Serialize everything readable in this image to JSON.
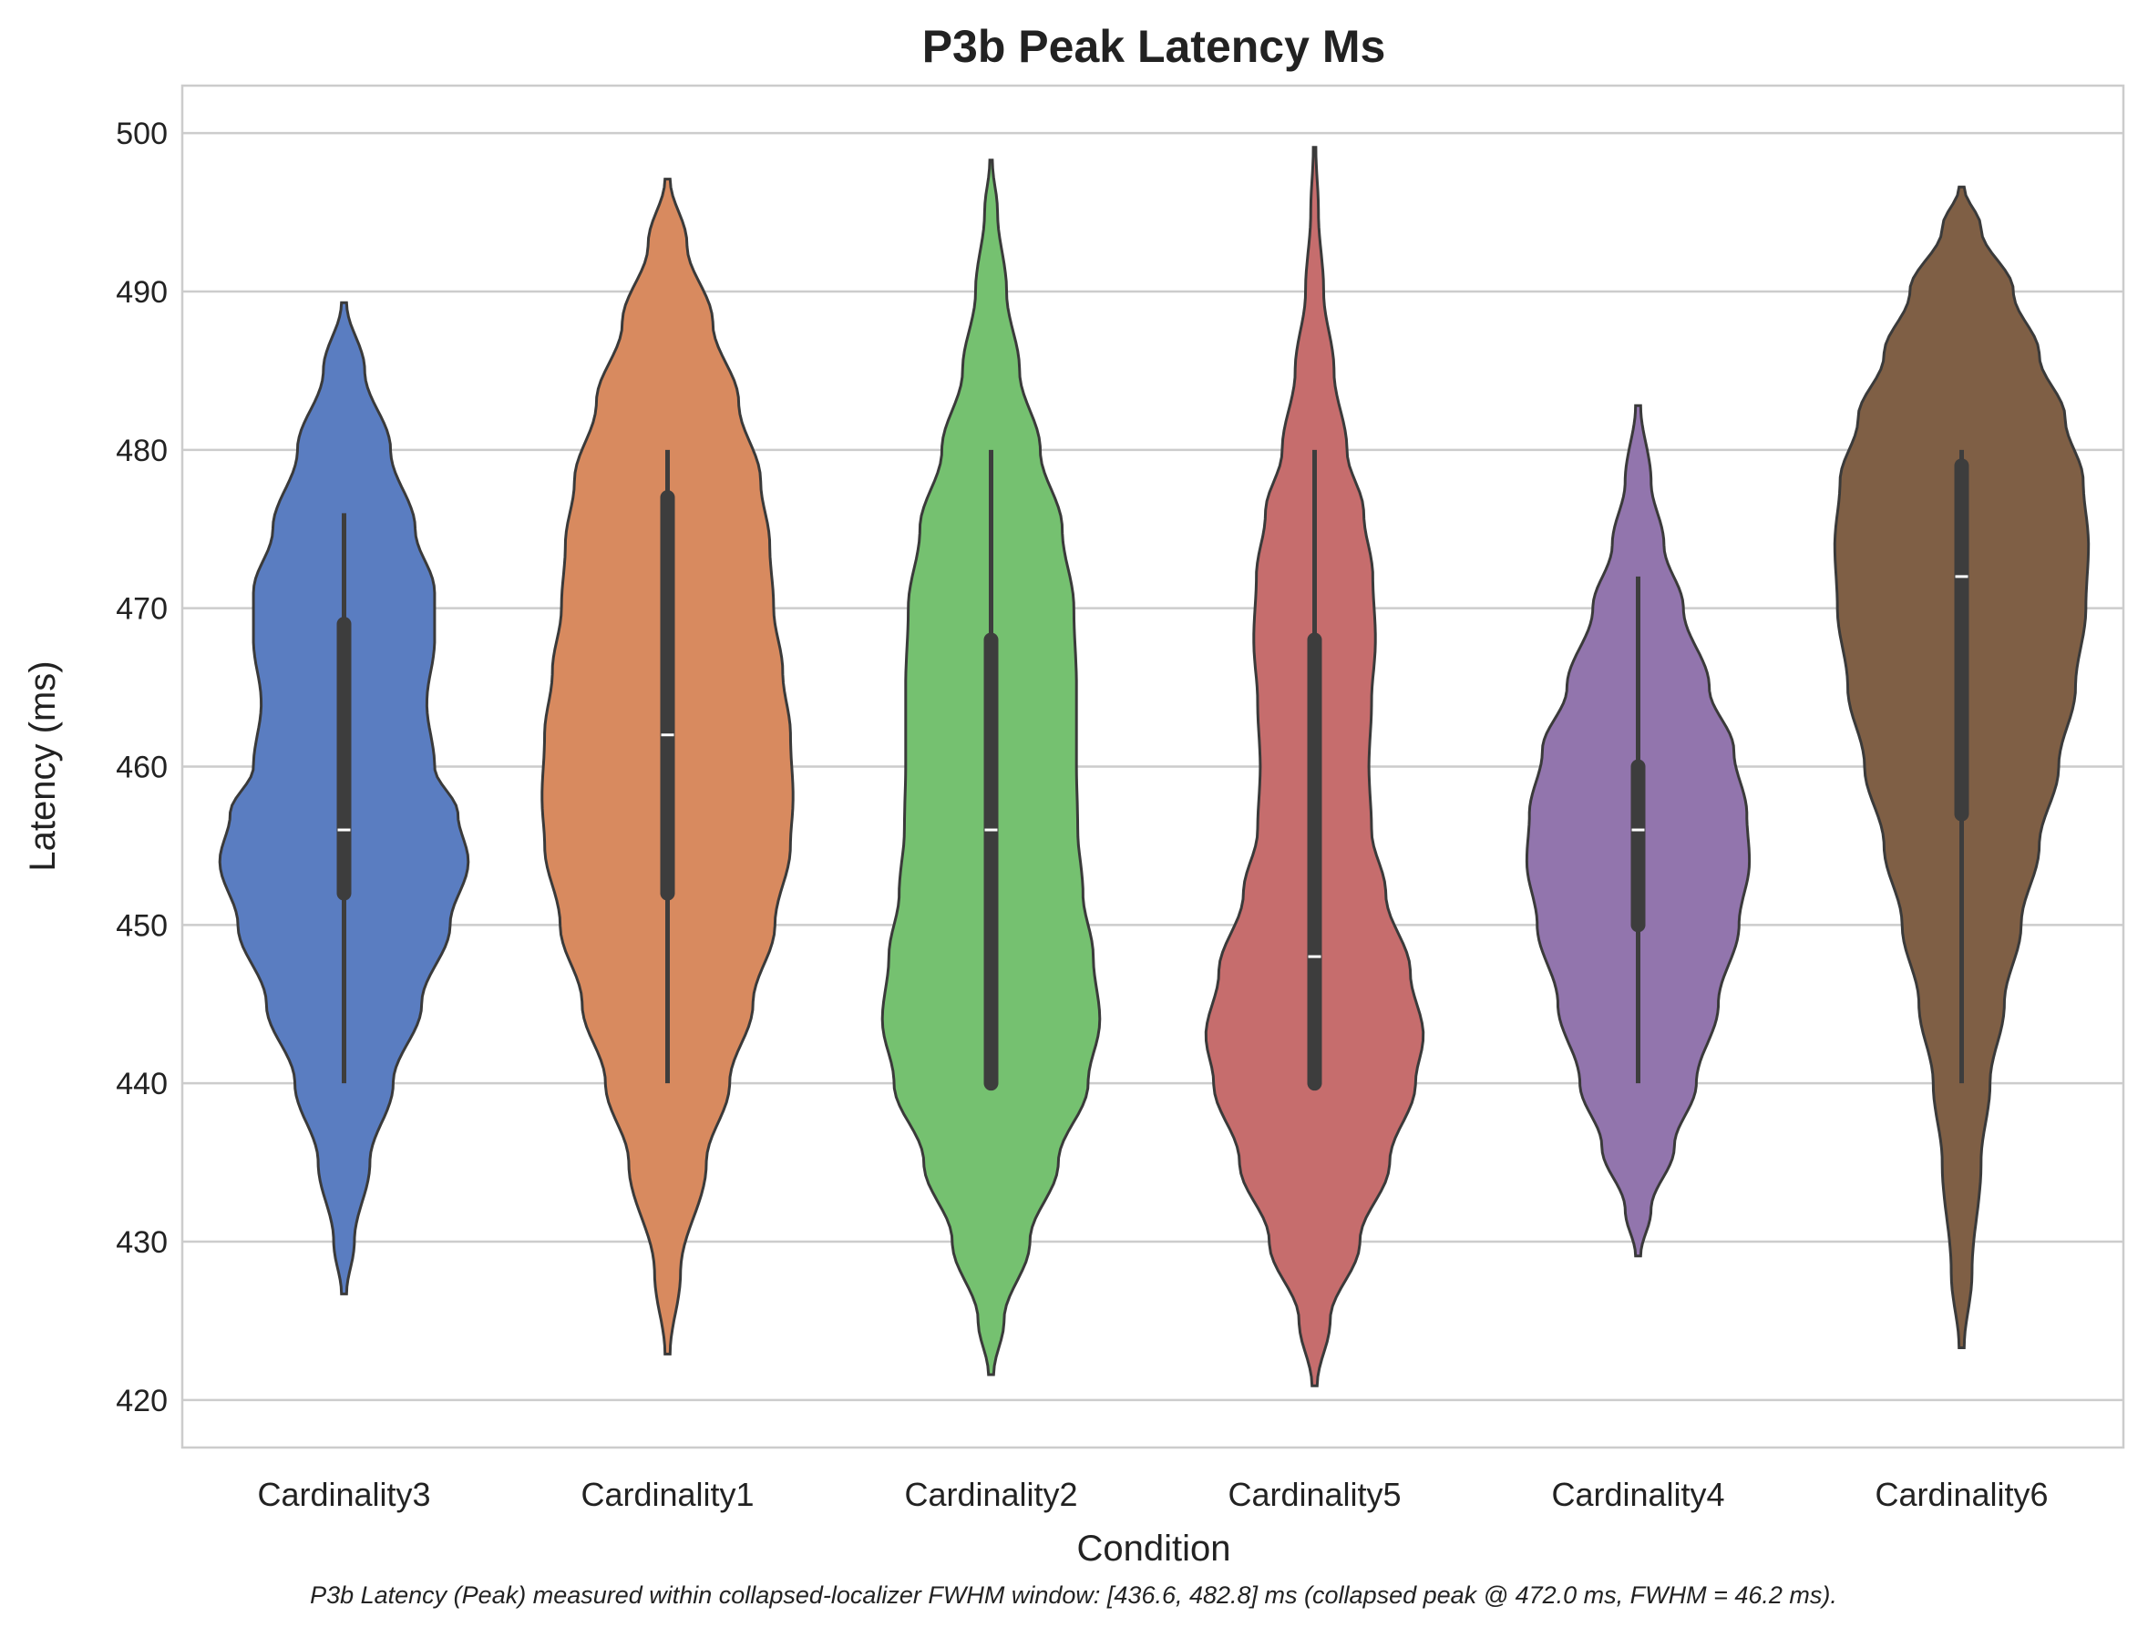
{
  "chart_data": {
    "type": "violin",
    "title": "P3b Peak Latency Ms",
    "xlabel": "Condition",
    "ylabel": "Latency (ms)",
    "ylim": [
      417,
      503
    ],
    "yticks": [
      420,
      430,
      440,
      450,
      460,
      470,
      480,
      490,
      500
    ],
    "grid": true,
    "caption": "P3b Latency (Peak) measured within collapsed-localizer FWHM window: [436.6, 482.8] ms (collapsed peak @ 472.0 ms, FWHM = 46.2 ms).",
    "categories": [
      "Cardinality3",
      "Cardinality1",
      "Cardinality2",
      "Cardinality5",
      "Cardinality4",
      "Cardinality6"
    ],
    "series": [
      {
        "category": "Cardinality3",
        "color": "#5a7dc1",
        "min": 440,
        "q1": 452,
        "median": 456,
        "q3": 469,
        "max": 476,
        "kde_range": [
          426.7,
          489.3
        ],
        "density": [
          [
            426.7,
            0.02
          ],
          [
            430,
            0.08
          ],
          [
            435,
            0.2
          ],
          [
            440,
            0.38
          ],
          [
            445,
            0.6
          ],
          [
            450,
            0.82
          ],
          [
            454,
            0.96
          ],
          [
            457,
            0.88
          ],
          [
            460,
            0.7
          ],
          [
            464,
            0.64
          ],
          [
            468,
            0.7
          ],
          [
            471,
            0.7
          ],
          [
            475,
            0.55
          ],
          [
            480,
            0.36
          ],
          [
            485,
            0.16
          ],
          [
            489.3,
            0.02
          ]
        ]
      },
      {
        "category": "Cardinality1",
        "color": "#d88a5f",
        "min": 440,
        "q1": 452,
        "median": 462,
        "q3": 477,
        "max": 480,
        "kde_range": [
          422.9,
          497.1
        ],
        "density": [
          [
            422.9,
            0.02
          ],
          [
            428,
            0.1
          ],
          [
            435,
            0.3
          ],
          [
            440,
            0.48
          ],
          [
            445,
            0.66
          ],
          [
            450,
            0.83
          ],
          [
            455,
            0.95
          ],
          [
            458,
            0.97
          ],
          [
            462,
            0.95
          ],
          [
            466,
            0.89
          ],
          [
            470,
            0.82
          ],
          [
            474,
            0.79
          ],
          [
            478,
            0.72
          ],
          [
            483,
            0.55
          ],
          [
            488,
            0.35
          ],
          [
            493,
            0.15
          ],
          [
            497.1,
            0.02
          ]
        ]
      },
      {
        "category": "Cardinality2",
        "color": "#75c170",
        "min": 440,
        "q1": 440,
        "median": 456,
        "q3": 468,
        "max": 480,
        "kde_range": [
          421.6,
          498.3
        ],
        "density": [
          [
            421.6,
            0.02
          ],
          [
            425,
            0.1
          ],
          [
            430,
            0.3
          ],
          [
            435,
            0.52
          ],
          [
            440,
            0.75
          ],
          [
            444,
            0.84
          ],
          [
            448,
            0.79
          ],
          [
            452,
            0.71
          ],
          [
            456,
            0.67
          ],
          [
            460,
            0.66
          ],
          [
            465,
            0.66
          ],
          [
            470,
            0.64
          ],
          [
            475,
            0.55
          ],
          [
            480,
            0.38
          ],
          [
            485,
            0.22
          ],
          [
            490,
            0.12
          ],
          [
            495,
            0.05
          ],
          [
            498.3,
            0.01
          ]
        ]
      },
      {
        "category": "Cardinality5",
        "color": "#c66d6d",
        "min": 440,
        "q1": 440,
        "median": 448,
        "q3": 468,
        "max": 480,
        "kde_range": [
          420.9,
          499.1
        ],
        "density": [
          [
            420.9,
            0.02
          ],
          [
            425,
            0.12
          ],
          [
            430,
            0.35
          ],
          [
            435,
            0.58
          ],
          [
            440,
            0.78
          ],
          [
            443,
            0.84
          ],
          [
            447,
            0.74
          ],
          [
            452,
            0.55
          ],
          [
            456,
            0.44
          ],
          [
            460,
            0.42
          ],
          [
            464,
            0.44
          ],
          [
            468,
            0.47
          ],
          [
            472,
            0.45
          ],
          [
            476,
            0.38
          ],
          [
            480,
            0.25
          ],
          [
            485,
            0.15
          ],
          [
            490,
            0.07
          ],
          [
            495,
            0.03
          ],
          [
            499.1,
            0.01
          ]
        ]
      },
      {
        "category": "Cardinality4",
        "color": "#9275ad",
        "min": 440,
        "q1": 450,
        "median": 456,
        "q3": 460,
        "max": 472,
        "kde_range": [
          429.1,
          482.8
        ],
        "density": [
          [
            429.1,
            0.02
          ],
          [
            432,
            0.1
          ],
          [
            436,
            0.28
          ],
          [
            440,
            0.45
          ],
          [
            445,
            0.62
          ],
          [
            450,
            0.78
          ],
          [
            454,
            0.86
          ],
          [
            457,
            0.84
          ],
          [
            461,
            0.74
          ],
          [
            465,
            0.55
          ],
          [
            470,
            0.35
          ],
          [
            474,
            0.2
          ],
          [
            478,
            0.1
          ],
          [
            482.8,
            0.02
          ]
        ]
      },
      {
        "category": "Cardinality6",
        "color": "#7f5f45",
        "min": 440,
        "q1": 457,
        "median": 472,
        "q3": 479,
        "max": 480,
        "kde_range": [
          423.3,
          496.6
        ],
        "density": [
          [
            423.3,
            0.02
          ],
          [
            428,
            0.08
          ],
          [
            435,
            0.15
          ],
          [
            440,
            0.22
          ],
          [
            445,
            0.33
          ],
          [
            450,
            0.46
          ],
          [
            455,
            0.6
          ],
          [
            460,
            0.75
          ],
          [
            465,
            0.88
          ],
          [
            470,
            0.96
          ],
          [
            474,
            0.98
          ],
          [
            478,
            0.94
          ],
          [
            482,
            0.8
          ],
          [
            486,
            0.6
          ],
          [
            490,
            0.4
          ],
          [
            494,
            0.15
          ],
          [
            496.6,
            0.02
          ]
        ]
      }
    ]
  }
}
